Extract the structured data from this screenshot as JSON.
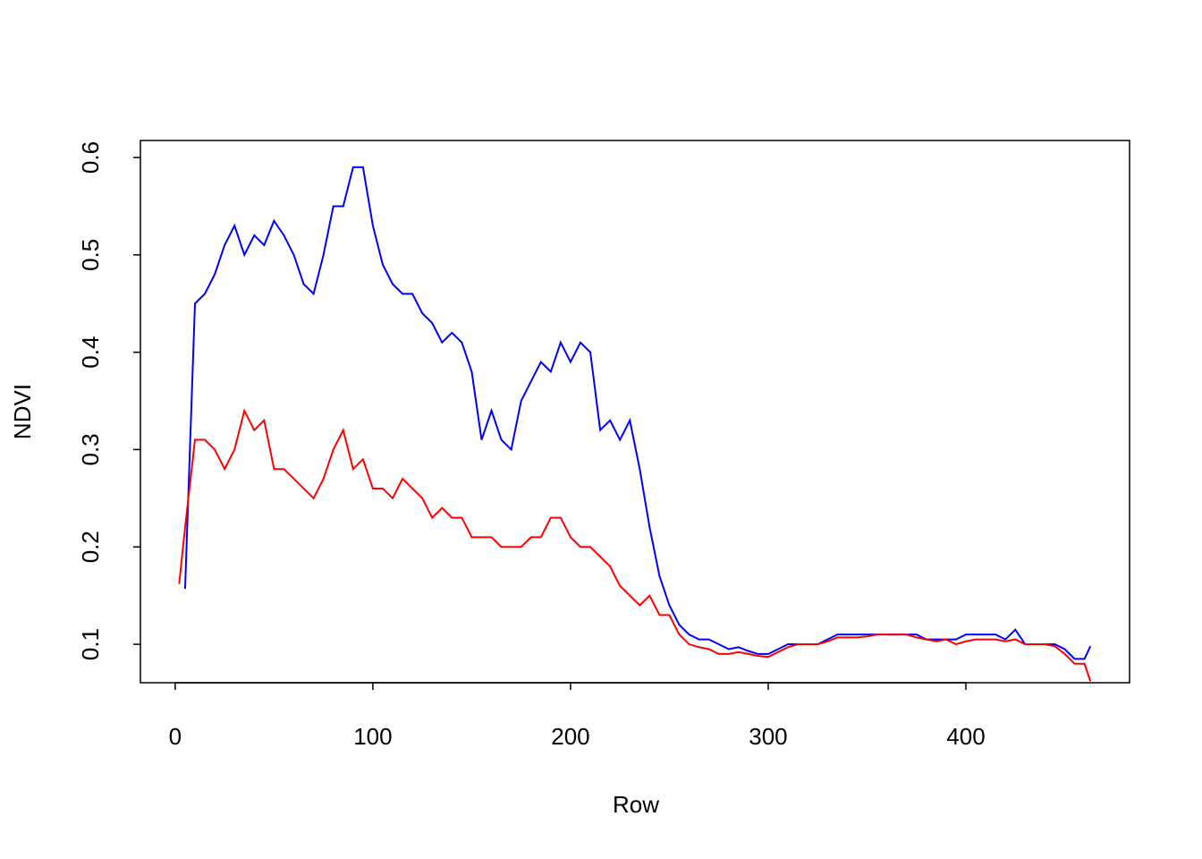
{
  "chart_data": {
    "type": "line",
    "x_label": "Row",
    "y_label": "NDVI",
    "x": [
      2,
      5,
      10,
      15,
      20,
      25,
      30,
      35,
      40,
      45,
      50,
      55,
      60,
      65,
      70,
      75,
      80,
      85,
      90,
      95,
      100,
      105,
      110,
      115,
      120,
      125,
      130,
      135,
      140,
      145,
      150,
      155,
      160,
      165,
      170,
      175,
      180,
      185,
      190,
      195,
      200,
      205,
      210,
      215,
      220,
      225,
      230,
      235,
      240,
      245,
      250,
      255,
      260,
      265,
      270,
      275,
      280,
      285,
      290,
      295,
      300,
      305,
      310,
      315,
      320,
      325,
      330,
      335,
      340,
      345,
      350,
      355,
      360,
      365,
      370,
      375,
      380,
      385,
      390,
      395,
      400,
      405,
      410,
      415,
      420,
      425,
      430,
      435,
      440,
      445,
      450,
      455,
      460,
      463
    ],
    "series": [
      {
        "color": "#0000ff",
        "values": [
          null,
          0.157,
          0.45,
          0.46,
          0.48,
          0.51,
          0.53,
          0.5,
          0.52,
          0.51,
          0.535,
          0.52,
          0.5,
          0.47,
          0.46,
          0.5,
          0.55,
          0.55,
          0.59,
          0.59,
          0.53,
          0.49,
          0.47,
          0.46,
          0.46,
          0.44,
          0.43,
          0.41,
          0.42,
          0.41,
          0.38,
          0.31,
          0.34,
          0.31,
          0.3,
          0.35,
          0.37,
          0.39,
          0.38,
          0.41,
          0.39,
          0.41,
          0.4,
          0.32,
          0.33,
          0.31,
          0.33,
          0.28,
          0.22,
          0.17,
          0.14,
          0.12,
          0.11,
          0.105,
          0.105,
          0.1,
          0.095,
          0.097,
          0.093,
          0.09,
          0.09,
          0.095,
          0.1,
          0.1,
          0.1,
          0.1,
          0.105,
          0.11,
          0.11,
          0.11,
          0.11,
          0.11,
          0.11,
          0.11,
          0.11,
          0.11,
          0.105,
          0.105,
          0.105,
          0.105,
          0.11,
          0.11,
          0.11,
          0.11,
          0.105,
          0.115,
          0.1,
          0.1,
          0.1,
          0.1,
          0.095,
          0.085,
          0.085,
          0.098
        ]
      },
      {
        "color": "#ff0000",
        "values": [
          0.162,
          0.22,
          0.31,
          0.31,
          0.3,
          0.28,
          0.3,
          0.34,
          0.32,
          0.33,
          0.28,
          0.28,
          0.27,
          0.26,
          0.25,
          0.27,
          0.3,
          0.32,
          0.28,
          0.29,
          0.26,
          0.26,
          0.25,
          0.27,
          0.26,
          0.25,
          0.23,
          0.24,
          0.23,
          0.23,
          0.21,
          0.21,
          0.21,
          0.2,
          0.2,
          0.2,
          0.21,
          0.21,
          0.23,
          0.23,
          0.21,
          0.2,
          0.2,
          0.19,
          0.18,
          0.16,
          0.15,
          0.14,
          0.15,
          0.13,
          0.13,
          0.11,
          0.1,
          0.097,
          0.095,
          0.09,
          0.09,
          0.092,
          0.09,
          0.088,
          0.087,
          0.092,
          0.097,
          0.1,
          0.1,
          0.1,
          0.103,
          0.107,
          0.107,
          0.107,
          0.108,
          0.11,
          0.11,
          0.11,
          0.11,
          0.107,
          0.105,
          0.103,
          0.105,
          0.1,
          0.103,
          0.105,
          0.105,
          0.105,
          0.103,
          0.105,
          0.1,
          0.1,
          0.1,
          0.098,
          0.09,
          0.08,
          0.08,
          0.062
        ]
      }
    ],
    "xlim": [
      -17.6,
      482.8
    ],
    "ylim": [
      0.0605,
      0.6175
    ],
    "xticks": [
      0,
      100,
      200,
      300,
      400
    ],
    "yticks": [
      0.1,
      0.2,
      0.3,
      0.4,
      0.5,
      0.6
    ]
  }
}
